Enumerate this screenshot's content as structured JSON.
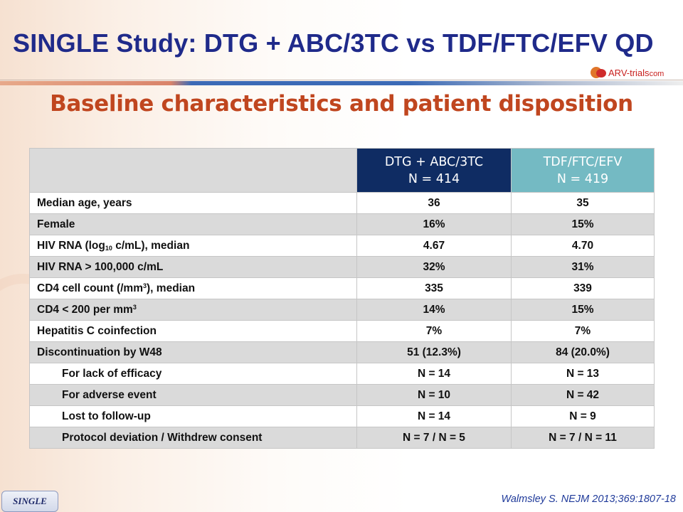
{
  "title": "SINGLE Study: DTG + ABC/3TC vs TDF/FTC/EFV QD",
  "logo": {
    "main": "ARV-trials",
    "domain": "com"
  },
  "subtitle": "Baseline characteristics and patient disposition",
  "table": {
    "columns": [
      {
        "name": "DTG + ABC/3TC",
        "n": "N = 414",
        "color": "#0f2c63"
      },
      {
        "name": "TDF/FTC/EFV",
        "n": "N = 419",
        "color": "#74bac3"
      }
    ],
    "rows": {
      "median_age": {
        "label": "Median age, years",
        "v1": "36",
        "v2": "35"
      },
      "female": {
        "label": "Female",
        "v1": "16%",
        "v2": "15%"
      },
      "hiv_rna_median": {
        "label_pre": "HIV RNA (log",
        "label_sub": "10",
        "label_post": " c/mL), median",
        "v1": "4.67",
        "v2": "4.70"
      },
      "hiv_rna_high": {
        "label": "HIV RNA > 100,000 c/mL",
        "v1": "32%",
        "v2": "31%"
      },
      "cd4_median": {
        "label_pre": "CD4 cell count (/mm",
        "label_sup": "3",
        "label_post": "), median",
        "v1": "335",
        "v2": "339"
      },
      "cd4_low": {
        "label_pre": "CD4 < 200 per mm",
        "label_sup": "3",
        "v1": "14%",
        "v2": "15%"
      },
      "hcv": {
        "label": "Hepatitis C coinfection",
        "v1": "7%",
        "v2": "7%"
      },
      "discontinuation": {
        "label": "Discontinuation by W48",
        "v1": "51 (12.3%)",
        "v2": "84 (20.0%)"
      },
      "lack_efficacy": {
        "label": "For lack of efficacy",
        "v1": "N = 14",
        "v2": "N = 13"
      },
      "adverse_event": {
        "label": "For adverse event",
        "v1": "N = 10",
        "v2": "N = 42"
      },
      "lost_followup": {
        "label": "Lost to follow-up",
        "v1": "N = 14",
        "v2": "N = 9"
      },
      "protocol_dev": {
        "label": "Protocol deviation / Withdrew consent",
        "v1": "N = 7 / N = 5",
        "v2": "N = 7 / N = 11"
      }
    }
  },
  "tag": "SINGLE",
  "reference": "Walmsley S. NEJM 2013;369:1807-18"
}
